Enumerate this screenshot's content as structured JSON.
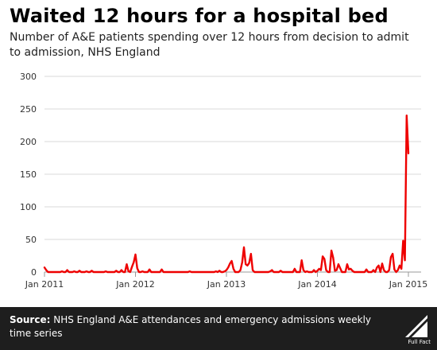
{
  "chart_data": {
    "type": "line",
    "title": "Waited 12 hours for a hospital bed",
    "subtitle": "Number of A&E patients spending over 12 hours from decision to admit to admission, NHS England",
    "xlabel": "",
    "ylabel": "",
    "ylim": [
      0,
      300
    ],
    "yticks": [
      0,
      50,
      100,
      150,
      200,
      250,
      300
    ],
    "xticks": [
      {
        "label": "Jan 2011",
        "week": 0
      },
      {
        "label": "Jan 2012",
        "week": 52
      },
      {
        "label": "Jan 2013",
        "week": 104
      },
      {
        "label": "Jan 2014",
        "week": 156
      },
      {
        "label": "Jan 2015",
        "week": 208
      }
    ],
    "grid": true,
    "line_color": "#ee0000",
    "series": [
      {
        "name": "",
        "points": [
          [
            0,
            7
          ],
          [
            1,
            3
          ],
          [
            2,
            0
          ],
          [
            3,
            0
          ],
          [
            4,
            0
          ],
          [
            5,
            0
          ],
          [
            6,
            0
          ],
          [
            7,
            0
          ],
          [
            8,
            0
          ],
          [
            9,
            0
          ],
          [
            10,
            1
          ],
          [
            11,
            0
          ],
          [
            12,
            0
          ],
          [
            13,
            3
          ],
          [
            14,
            0
          ],
          [
            15,
            0
          ],
          [
            16,
            0
          ],
          [
            17,
            1
          ],
          [
            18,
            0
          ],
          [
            19,
            0
          ],
          [
            20,
            2
          ],
          [
            21,
            0
          ],
          [
            22,
            0
          ],
          [
            23,
            0
          ],
          [
            24,
            1
          ],
          [
            25,
            0
          ],
          [
            26,
            0
          ],
          [
            27,
            2
          ],
          [
            28,
            0
          ],
          [
            29,
            0
          ],
          [
            30,
            0
          ],
          [
            31,
            0
          ],
          [
            32,
            0
          ],
          [
            33,
            0
          ],
          [
            34,
            0
          ],
          [
            35,
            1
          ],
          [
            36,
            0
          ],
          [
            37,
            0
          ],
          [
            38,
            0
          ],
          [
            39,
            0
          ],
          [
            40,
            0
          ],
          [
            41,
            2
          ],
          [
            42,
            0
          ],
          [
            43,
            0
          ],
          [
            44,
            3
          ],
          [
            45,
            0
          ],
          [
            46,
            0
          ],
          [
            47,
            12
          ],
          [
            48,
            1
          ],
          [
            49,
            0
          ],
          [
            50,
            8
          ],
          [
            51,
            15
          ],
          [
            52,
            27
          ],
          [
            53,
            6
          ],
          [
            54,
            0
          ],
          [
            55,
            0
          ],
          [
            56,
            1
          ],
          [
            57,
            0
          ],
          [
            58,
            0
          ],
          [
            59,
            0
          ],
          [
            60,
            4
          ],
          [
            61,
            0
          ],
          [
            62,
            0
          ],
          [
            63,
            0
          ],
          [
            64,
            0
          ],
          [
            65,
            0
          ],
          [
            66,
            0
          ],
          [
            67,
            4
          ],
          [
            68,
            0
          ],
          [
            69,
            0
          ],
          [
            70,
            0
          ],
          [
            71,
            0
          ],
          [
            72,
            0
          ],
          [
            73,
            0
          ],
          [
            74,
            0
          ],
          [
            75,
            0
          ],
          [
            76,
            0
          ],
          [
            77,
            0
          ],
          [
            78,
            0
          ],
          [
            79,
            0
          ],
          [
            80,
            0
          ],
          [
            81,
            0
          ],
          [
            82,
            0
          ],
          [
            83,
            1
          ],
          [
            84,
            0
          ],
          [
            85,
            0
          ],
          [
            86,
            0
          ],
          [
            87,
            0
          ],
          [
            88,
            0
          ],
          [
            89,
            0
          ],
          [
            90,
            0
          ],
          [
            91,
            0
          ],
          [
            92,
            0
          ],
          [
            93,
            0
          ],
          [
            94,
            0
          ],
          [
            95,
            0
          ],
          [
            96,
            0
          ],
          [
            97,
            0
          ],
          [
            98,
            1
          ],
          [
            99,
            0
          ],
          [
            100,
            2
          ],
          [
            101,
            0
          ],
          [
            102,
            0
          ],
          [
            103,
            1
          ],
          [
            104,
            3
          ],
          [
            105,
            7
          ],
          [
            106,
            13
          ],
          [
            107,
            17
          ],
          [
            108,
            5
          ],
          [
            109,
            0
          ],
          [
            110,
            0
          ],
          [
            111,
            0
          ],
          [
            112,
            3
          ],
          [
            113,
            15
          ],
          [
            114,
            38
          ],
          [
            115,
            12
          ],
          [
            116,
            10
          ],
          [
            117,
            14
          ],
          [
            118,
            28
          ],
          [
            119,
            3
          ],
          [
            120,
            0
          ],
          [
            121,
            0
          ],
          [
            122,
            0
          ],
          [
            123,
            0
          ],
          [
            124,
            0
          ],
          [
            125,
            0
          ],
          [
            126,
            0
          ],
          [
            127,
            0
          ],
          [
            128,
            0
          ],
          [
            129,
            1
          ],
          [
            130,
            3
          ],
          [
            131,
            0
          ],
          [
            132,
            0
          ],
          [
            133,
            0
          ],
          [
            134,
            0
          ],
          [
            135,
            2
          ],
          [
            136,
            0
          ],
          [
            137,
            0
          ],
          [
            138,
            0
          ],
          [
            139,
            0
          ],
          [
            140,
            0
          ],
          [
            141,
            0
          ],
          [
            142,
            0
          ],
          [
            143,
            5
          ],
          [
            144,
            0
          ],
          [
            145,
            0
          ],
          [
            146,
            0
          ],
          [
            147,
            18
          ],
          [
            148,
            3
          ],
          [
            149,
            0
          ],
          [
            150,
            1
          ],
          [
            151,
            0
          ],
          [
            152,
            0
          ],
          [
            153,
            0
          ],
          [
            154,
            3
          ],
          [
            155,
            0
          ],
          [
            156,
            2
          ],
          [
            157,
            5
          ],
          [
            158,
            3
          ],
          [
            159,
            24
          ],
          [
            160,
            20
          ],
          [
            161,
            3
          ],
          [
            162,
            0
          ],
          [
            163,
            0
          ],
          [
            164,
            33
          ],
          [
            165,
            22
          ],
          [
            166,
            2
          ],
          [
            167,
            3
          ],
          [
            168,
            12
          ],
          [
            169,
            6
          ],
          [
            170,
            0
          ],
          [
            171,
            0
          ],
          [
            172,
            0
          ],
          [
            173,
            12
          ],
          [
            174,
            4
          ],
          [
            175,
            5
          ],
          [
            176,
            2
          ],
          [
            177,
            0
          ],
          [
            178,
            0
          ],
          [
            179,
            0
          ],
          [
            180,
            0
          ],
          [
            181,
            0
          ],
          [
            182,
            0
          ],
          [
            183,
            0
          ],
          [
            184,
            4
          ],
          [
            185,
            0
          ],
          [
            186,
            0
          ],
          [
            187,
            0
          ],
          [
            188,
            3
          ],
          [
            189,
            0
          ],
          [
            190,
            7
          ],
          [
            191,
            10
          ],
          [
            192,
            0
          ],
          [
            193,
            13
          ],
          [
            194,
            3
          ],
          [
            195,
            0
          ],
          [
            196,
            0
          ],
          [
            197,
            3
          ],
          [
            198,
            23
          ],
          [
            199,
            28
          ],
          [
            200,
            4
          ],
          [
            201,
            0
          ],
          [
            202,
            3
          ],
          [
            203,
            10
          ],
          [
            204,
            5
          ],
          [
            205,
            48
          ],
          [
            206,
            18
          ],
          [
            207,
            240
          ],
          [
            208,
            182
          ]
        ]
      }
    ]
  },
  "footer": {
    "source_label": "Source:",
    "source_text": "NHS England A&E attendances and emergency admissions weekly time series",
    "logo_text": "Full Fact"
  }
}
